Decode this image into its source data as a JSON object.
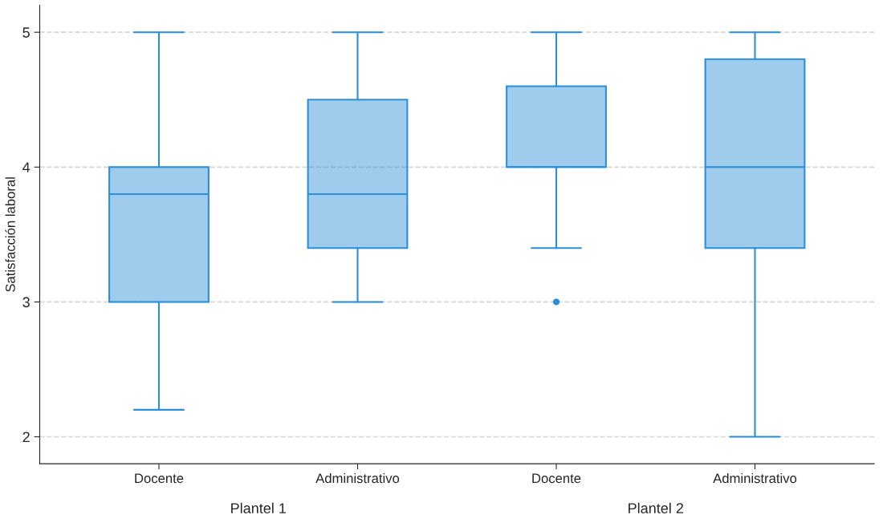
{
  "chart_data": {
    "type": "box",
    "ylabel": "Satisfacción laboral",
    "categories": [
      "Docente",
      "Administrativo",
      "Docente",
      "Administrativo"
    ],
    "annotations": [
      "Plantel 1",
      "Plantel 2"
    ],
    "series": [
      {
        "color": "#2a8fd6",
        "boxes": [
          {
            "low": 2.2,
            "q1": 3.0,
            "median": 3.8,
            "q3": 4.0,
            "high": 5
          },
          {
            "low": 3.0,
            "q1": 3.4,
            "median": 3.8,
            "q3": 4.5,
            "high": 5
          },
          {
            "low": 3.4,
            "q1": 4.0,
            "median": 4.0,
            "q3": 4.6,
            "high": 5,
            "outliers": [
              3
            ]
          },
          {
            "low": 2,
            "q1": 3.4,
            "median": 4.0,
            "q3": 4.8,
            "high": 5
          }
        ]
      }
    ],
    "ylim": [
      1.8,
      5.2
    ],
    "yticks": [
      2,
      3,
      4,
      5
    ],
    "grid": "y",
    "legend": false
  }
}
